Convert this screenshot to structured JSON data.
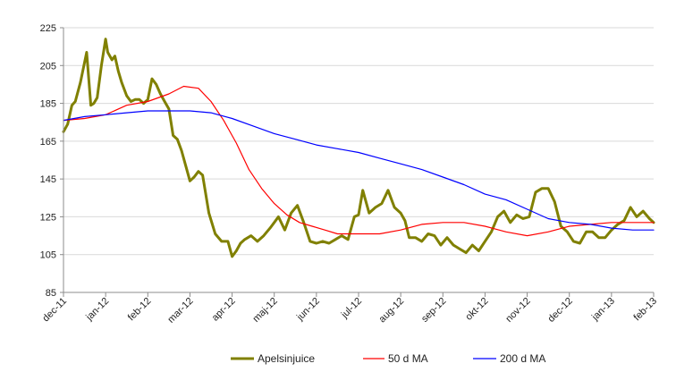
{
  "chart_data": {
    "type": "line",
    "title": "",
    "xlabel": "",
    "ylabel": "",
    "ylim": [
      85,
      225
    ],
    "yticks": [
      85,
      105,
      125,
      145,
      165,
      185,
      205,
      225
    ],
    "x_tick_labels": [
      "dec-11",
      "jan-12",
      "feb-12",
      "mar-12",
      "apr-12",
      "maj-12",
      "jun-12",
      "jul-12",
      "aug-12",
      "sep-12",
      "okt-12",
      "nov-12",
      "dec-12",
      "jan-13",
      "feb-13"
    ],
    "x_range": [
      0,
      14
    ],
    "grid": {
      "horizontal": true,
      "vertical": false,
      "color": "#d9d9d9"
    },
    "legend": "bottom-center",
    "series": [
      {
        "name": "Apelsinjuice",
        "color": "#808000",
        "width": 3,
        "x": [
          0,
          0.1,
          0.2,
          0.28,
          0.4,
          0.55,
          0.65,
          0.72,
          0.8,
          0.9,
          1.0,
          1.05,
          1.15,
          1.22,
          1.3,
          1.38,
          1.5,
          1.6,
          1.7,
          1.8,
          1.9,
          2.0,
          2.1,
          2.2,
          2.3,
          2.4,
          2.5,
          2.6,
          2.7,
          2.8,
          2.9,
          3.0,
          3.1,
          3.2,
          3.3,
          3.45,
          3.6,
          3.75,
          3.9,
          4.0,
          4.1,
          4.2,
          4.3,
          4.45,
          4.6,
          4.75,
          4.9,
          5.0,
          5.1,
          5.25,
          5.4,
          5.55,
          5.7,
          5.85,
          6.0,
          6.15,
          6.3,
          6.45,
          6.6,
          6.75,
          6.9,
          7.0,
          7.1,
          7.25,
          7.4,
          7.55,
          7.7,
          7.85,
          8.0,
          8.1,
          8.2,
          8.35,
          8.5,
          8.65,
          8.8,
          8.95,
          9.1,
          9.25,
          9.4,
          9.55,
          9.7,
          9.85,
          10.0,
          10.15,
          10.3,
          10.45,
          10.6,
          10.75,
          10.9,
          11.05,
          11.2,
          11.35,
          11.5,
          11.65,
          11.8,
          11.95,
          12.1,
          12.25,
          12.4,
          12.55,
          12.7,
          12.85,
          13.0,
          13.15,
          13.3,
          13.45,
          13.6,
          13.75,
          13.9,
          14.0
        ],
        "values": [
          170,
          174,
          184,
          186,
          196,
          212,
          184,
          185,
          188,
          205,
          219,
          212,
          208,
          210,
          202,
          196,
          189,
          186,
          187,
          187,
          185,
          187,
          198,
          195,
          190,
          186,
          182,
          168,
          166,
          160,
          152,
          144,
          146,
          149,
          147,
          127,
          116,
          112,
          112,
          104,
          107,
          111,
          113,
          115,
          112,
          115,
          119,
          122,
          125,
          118,
          127,
          131,
          122,
          112,
          111,
          112,
          111,
          113,
          115,
          113,
          125,
          126,
          139,
          127,
          130,
          132,
          139,
          130,
          127,
          123,
          114,
          114,
          112,
          116,
          115,
          110,
          114,
          110,
          108,
          106,
          110,
          107,
          112,
          117,
          125,
          128,
          122,
          126,
          124,
          125,
          138,
          140,
          140,
          133,
          120,
          117,
          112,
          111,
          117,
          117,
          114,
          114,
          118,
          121,
          123,
          130,
          125,
          128,
          124,
          122
        ]
      },
      {
        "name": "50 d MA",
        "color": "#ff0000",
        "width": 1.2,
        "x": [
          0,
          0.5,
          1.0,
          1.5,
          2.0,
          2.5,
          2.85,
          3.2,
          3.5,
          3.8,
          4.1,
          4.4,
          4.7,
          5.0,
          5.3,
          5.6,
          5.9,
          6.2,
          6.5,
          7.0,
          7.5,
          8.0,
          8.5,
          9.0,
          9.5,
          10.0,
          10.5,
          11.0,
          11.5,
          12.0,
          12.5,
          13.0,
          13.5,
          14.0
        ],
        "values": [
          176,
          177,
          179,
          184,
          186,
          190,
          194,
          193,
          186,
          176,
          164,
          150,
          140,
          132,
          126,
          122,
          120,
          118,
          116,
          116,
          116,
          118,
          121,
          122,
          122,
          120,
          117,
          115,
          117,
          120,
          121,
          122,
          122,
          122
        ]
      },
      {
        "name": "200 d MA",
        "color": "#0000ff",
        "width": 1.2,
        "x": [
          0,
          0.5,
          1.0,
          1.5,
          2.0,
          2.5,
          3.0,
          3.5,
          4.0,
          4.5,
          5.0,
          5.5,
          6.0,
          6.5,
          7.0,
          7.5,
          8.0,
          8.5,
          9.0,
          9.5,
          10.0,
          10.5,
          11.0,
          11.5,
          12.0,
          12.5,
          13.0,
          13.5,
          14.0
        ],
        "values": [
          176,
          178,
          179,
          180,
          181,
          181,
          181,
          180,
          177,
          173,
          169,
          166,
          163,
          161,
          159,
          156,
          153,
          150,
          146,
          142,
          137,
          134,
          129,
          124,
          122,
          121,
          119,
          118,
          118
        ]
      }
    ]
  }
}
